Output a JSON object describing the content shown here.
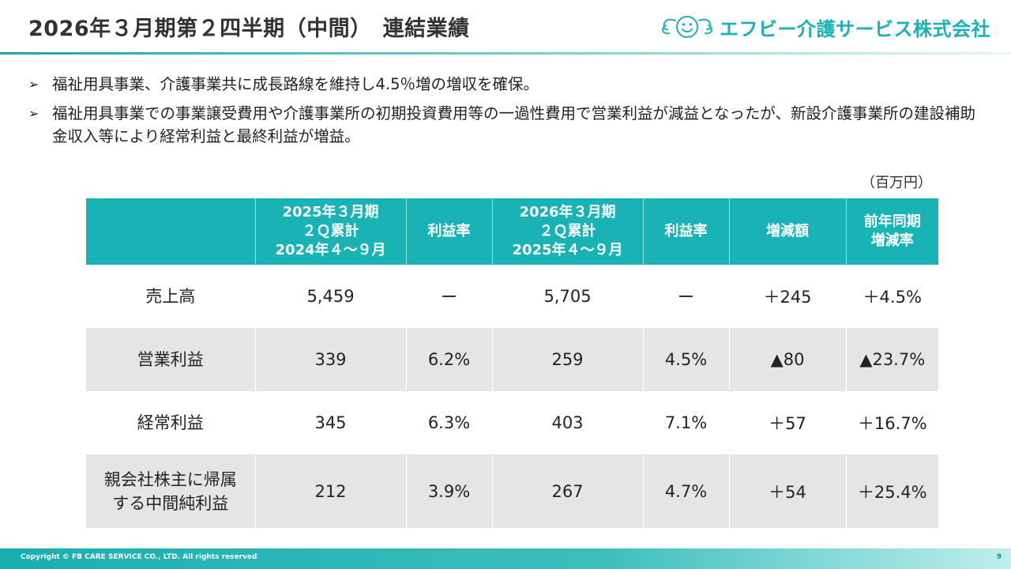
{
  "header": {
    "title": "2026年３月期第２四半期（中間）　連結業績",
    "brand_name": "エフビー介護サービス株式会社",
    "brand_logo_icon": "smiling-angel-logo-icon"
  },
  "bullets": [
    "福祉用具事業、介護事業共に成長路線を維持し4.5％増の増収を確保。",
    "福祉用具事業での事業譲受費用や介護事業所の初期投資費用等の一過性費用で営業利益が減益となったが、新設介護事業所の建設補助金収入等により経常利益と最終利益が増益。"
  ],
  "bullet_marker": "➢",
  "unit_label": "（百万円）",
  "table": {
    "headers": [
      "",
      "2025年３月期\n２Ｑ累計\n2024年４～９月",
      "利益率",
      "2026年３月期\n２Ｑ累計\n2025年４～９月",
      "利益率",
      "増減額",
      "前年同期\n増減率"
    ],
    "rows": [
      [
        "売上高",
        "5,459",
        "ー",
        "5,705",
        "ー",
        "＋245",
        "＋4.5%"
      ],
      [
        "営業利益",
        "339",
        "6.2%",
        "259",
        "4.5%",
        "▲80",
        "▲23.7%"
      ],
      [
        "経常利益",
        "345",
        "6.3%",
        "403",
        "7.1%",
        "＋57",
        "＋16.7%"
      ],
      [
        "親会社株主に帰属\nする中間純利益",
        "212",
        "3.9%",
        "267",
        "4.7%",
        "＋54",
        "＋25.4%"
      ]
    ]
  },
  "footer": {
    "copyright": "Copyright © FB CARE SERVICE CO., LTD. All rights reserved",
    "page_number": "9"
  },
  "colors": {
    "accent": "#1ab3b5",
    "row_gray": "#e5e5e5",
    "text": "#222222"
  }
}
